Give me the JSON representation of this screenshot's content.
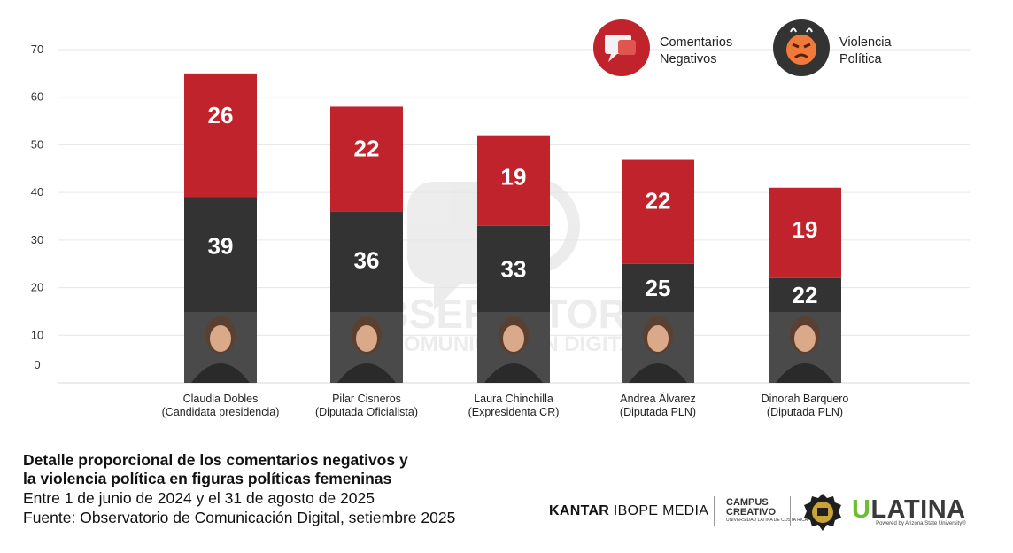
{
  "chart_data": {
    "type": "bar",
    "stacked": true,
    "categories": [
      {
        "name": "Claudia Dobles",
        "role": "(Candidata presidencia)"
      },
      {
        "name": "Pilar Cisneros",
        "role": "(Diputada Oficialista)"
      },
      {
        "name": "Laura Chinchilla",
        "role": "(Expresidenta CR)"
      },
      {
        "name": "Andrea Álvarez",
        "role": "(Diputada PLN)"
      },
      {
        "name": "Dinorah Barquero",
        "role": "(Diputada PLN)"
      }
    ],
    "series": [
      {
        "name": "Violencia Política",
        "color": "#333333",
        "values": [
          39,
          36,
          33,
          25,
          22
        ]
      },
      {
        "name": "Comentarios Negativos",
        "color": "#c0232b",
        "values": [
          26,
          22,
          19,
          22,
          19
        ]
      }
    ],
    "ylim": [
      0,
      70
    ],
    "yticks": [
      0,
      10,
      20,
      30,
      40,
      50,
      60,
      70
    ],
    "grid": true,
    "legend_position": "top-right",
    "legend": [
      {
        "label_line1": "Comentarios",
        "label_line2": "Negativos",
        "color": "#c0232b",
        "icon": "negative-comment-icon"
      },
      {
        "label_line1": "Violencia",
        "label_line2": "Política",
        "color": "#333333",
        "icon": "angry-face-icon"
      }
    ],
    "watermark": [
      "OBSERVATORIO",
      "COMUNICACIÓN DIGITAL"
    ]
  },
  "footer": {
    "title_line1": "Detalle proporcional de los comentarios negativos y",
    "title_line2": "la violencia política en figuras políticas femeninas",
    "subtitle_line1": "Entre 1 de junio de 2024 y el 31 de agosto de 2025",
    "subtitle_line2": "Fuente: Observatorio de Comunicación Digital, setiembre 2025"
  },
  "logos": {
    "kantar_bold": "KANTAR",
    "kantar_rest": " IBOPE MEDIA",
    "campus_line1": "CAMPUS",
    "campus_line2": "CREATIVO",
    "campus_small": "UNIVERSIDAD LATINA DE COSTA RICA",
    "ulatina_u": "U",
    "ulatina_rest": "LATINA",
    "ulatina_small": "Powered by Arizona State University®"
  }
}
